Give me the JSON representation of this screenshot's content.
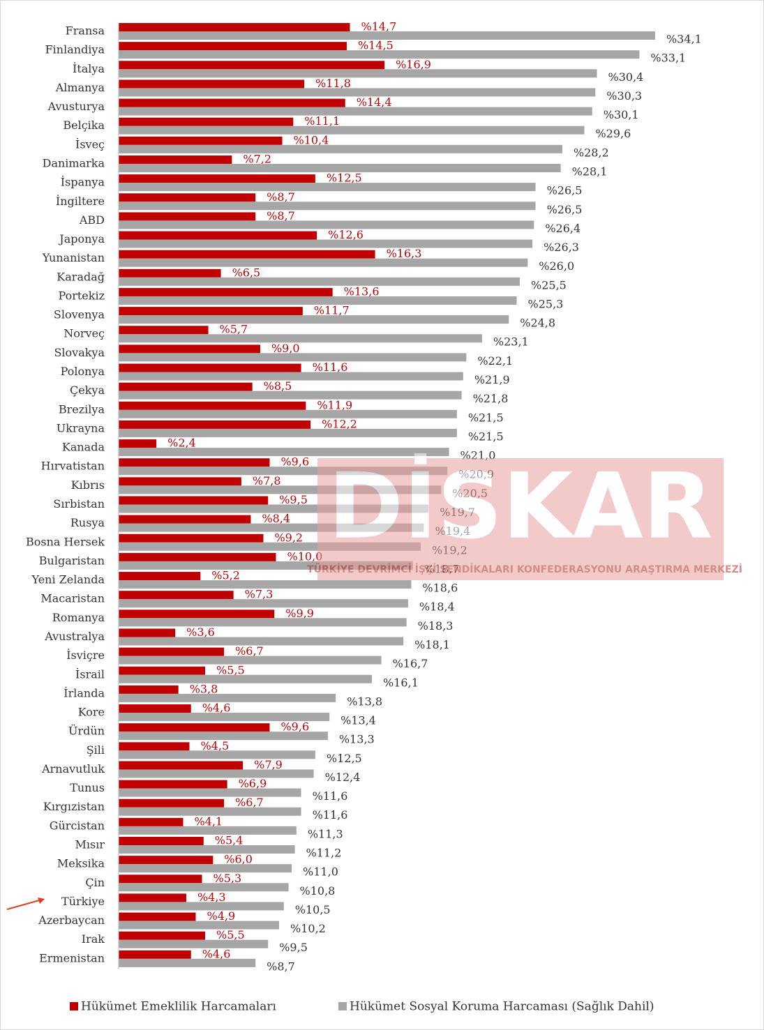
{
  "chart_data": {
    "type": "bar",
    "orientation": "horizontal",
    "watermark": "DİSKAR",
    "watermark_subtitle": "TÜRKİYE DEVRİMCİ İŞÇİ SENDİKALARI KONFEDERASYONU ARAŞTIRMA MERKEZİ",
    "categories": [
      "Fransa",
      "Finlandiya",
      "İtalya",
      "Almanya",
      "Avusturya",
      "Belçika",
      "İsveç",
      "Danimarka",
      "İspanya",
      "İngiltere",
      "ABD",
      "Japonya",
      "Yunanistan",
      "Karadağ",
      "Portekiz",
      "Slovenya",
      "Norveç",
      "Slovakya",
      "Polonya",
      "Çekya",
      "Brezilya",
      "Ukrayna",
      "Kanada",
      "Hırvatistan",
      "Kıbrıs",
      "Sırbistan",
      "Rusya",
      "Bosna Hersek",
      "Bulgaristan",
      "Yeni Zelanda",
      "Macaristan",
      "Romanya",
      "Avustralya",
      "İsviçre",
      "İsrail",
      "İrlanda",
      "Kore",
      "Ürdün",
      "Şili",
      "Arnavutluk",
      "Tunus",
      "Kırgızistan",
      "Gürcistan",
      "Mısır",
      "Meksika",
      "Çin",
      "Türkiye",
      "Azerbaycan",
      "Irak",
      "Ermenistan"
    ],
    "series": [
      {
        "name": "Hükümet Emeklilik Harcamaları",
        "color": "#c00000",
        "values": [
          14.7,
          14.5,
          16.9,
          11.8,
          14.4,
          11.1,
          10.4,
          7.2,
          12.5,
          8.7,
          8.7,
          12.6,
          16.3,
          6.5,
          13.6,
          11.7,
          5.7,
          9.0,
          11.6,
          8.5,
          11.9,
          12.2,
          2.4,
          9.6,
          7.8,
          9.5,
          8.4,
          9.2,
          10.0,
          5.2,
          7.3,
          9.9,
          3.6,
          6.7,
          5.5,
          3.8,
          4.6,
          9.6,
          4.5,
          7.9,
          6.9,
          6.7,
          4.1,
          5.4,
          6.0,
          5.3,
          4.3,
          4.9,
          5.5,
          4.6
        ],
        "value_labels": [
          "%14,7",
          "%14,5",
          "%16,9",
          "%11,8",
          "%14,4",
          "%11,1",
          "%10,4",
          "%7,2",
          "%12,5",
          "%8,7",
          "%8,7",
          "%12,6",
          "%16,3",
          "%6,5",
          "%13,6",
          "%11,7",
          "%5,7",
          "%9,0",
          "%11,6",
          "%8,5",
          "%11,9",
          "%12,2",
          "%2,4",
          "%9,6",
          "%7,8",
          "%9,5",
          "%8,4",
          "%9,2",
          "%10,0",
          "%5,2",
          "%7,3",
          "%9,9",
          "%3,6",
          "%6,7",
          "%5,5",
          "%3,8",
          "%4,6",
          "%9,6",
          "%4,5",
          "%7,9",
          "%6,9",
          "%6,7",
          "%4,1",
          "%5,4",
          "%6,0",
          "%5,3",
          "%4,3",
          "%4,9",
          "%5,5",
          "%4,6"
        ]
      },
      {
        "name": "Hükümet Sosyal Koruma Harcaması (Sağlık Dahil)",
        "color": "#a6a6a6",
        "values": [
          34.1,
          33.1,
          30.4,
          30.3,
          30.1,
          29.6,
          28.2,
          28.1,
          26.5,
          26.5,
          26.4,
          26.3,
          26.0,
          25.5,
          25.3,
          24.8,
          23.1,
          22.1,
          21.9,
          21.8,
          21.5,
          21.5,
          21.0,
          20.9,
          20.5,
          19.7,
          19.4,
          19.2,
          18.7,
          18.6,
          18.4,
          18.3,
          18.1,
          16.7,
          16.1,
          13.8,
          13.4,
          13.3,
          12.5,
          12.4,
          11.6,
          11.6,
          11.3,
          11.2,
          11.0,
          10.8,
          10.5,
          10.2,
          9.5,
          8.7
        ],
        "value_labels": [
          "%34,1",
          "%33,1",
          "%30,4",
          "%30,3",
          "%30,1",
          "%29,6",
          "%28,2",
          "%28,1",
          "%26,5",
          "%26,5",
          "%26,4",
          "%26,3",
          "%26,0",
          "%25,5",
          "%25,3",
          "%24,8",
          "%23,1",
          "%22,1",
          "%21,9",
          "%21,8",
          "%21,5",
          "%21,5",
          "%21,0",
          "%20,9",
          "%20,5",
          "%19,7",
          "%19,4",
          "%19,2",
          "%18,7",
          "%18,6",
          "%18,4",
          "%18,3",
          "%18,1",
          "%16,7",
          "%16,1",
          "%13,8",
          "%13,4",
          "%13,3",
          "%12,5",
          "%12,4",
          "%11,6",
          "%11,6",
          "%11,3",
          "%11,2",
          "%11,0",
          "%10,8",
          "%10,5",
          "%10,2",
          "%9,5",
          "%8,7"
        ]
      }
    ],
    "xlim": [
      0,
      40
    ],
    "legend": "bottom"
  }
}
